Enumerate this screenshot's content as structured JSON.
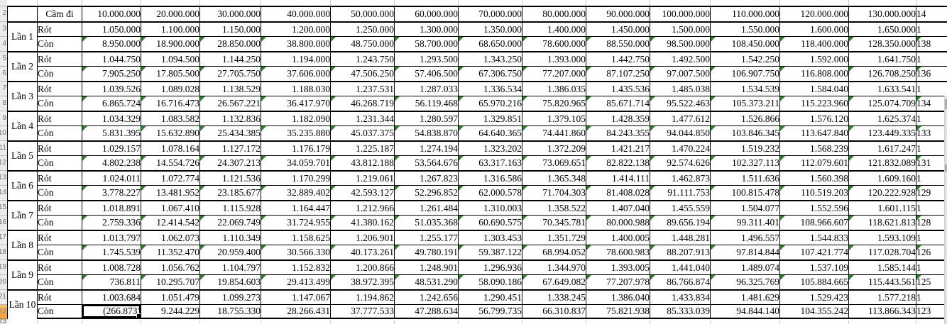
{
  "sheet": {
    "corner": "",
    "header": {
      "label_col": "Cầm đi",
      "amounts": [
        "10.000.000",
        "20.000.000",
        "30.000.000",
        "40.000.000",
        "50.000.000",
        "60.000.000",
        "70.000.000",
        "80.000.000",
        "90.000.000",
        "100.000.000",
        "110.000.000",
        "120.000.000",
        "130.000.000"
      ],
      "amount_cut": "14"
    },
    "sub_labels": {
      "rot": "Rót",
      "con": "Còn"
    },
    "rows": [
      {
        "label": "Lần 1",
        "rot": [
          "1.050.000",
          "1.100.000",
          "1.150.000",
          "1.200.000",
          "1.250.000",
          "1.300.000",
          "1.350.000",
          "1.400.000",
          "1.450.000",
          "1.500.000",
          "1.550.000",
          "1.600.000",
          "1.650.000"
        ],
        "rot_cut": "1",
        "con": [
          "8.950.000",
          "18.900.000",
          "28.850.000",
          "38.800.000",
          "48.750.000",
          "58.700.000",
          "68.650.000",
          "78.600.000",
          "88.550.000",
          "98.500.000",
          "108.450.000",
          "118.400.000",
          "128.350.000"
        ],
        "con_cut": "138"
      },
      {
        "label": "Lần 2",
        "rot": [
          "1.044.750",
          "1.094.500",
          "1.144.250",
          "1.194.000",
          "1.243.750",
          "1.293.500",
          "1.343.250",
          "1.393.000",
          "1.442.750",
          "1.492.500",
          "1.542.250",
          "1.592.000",
          "1.641.750"
        ],
        "rot_cut": "1",
        "con": [
          "7.905.250",
          "17.805.500",
          "27.705.750",
          "37.606.000",
          "47.506.250",
          "57.406.500",
          "67.306.750",
          "77.207.000",
          "87.107.250",
          "97.007.500",
          "106.907.750",
          "116.808.000",
          "126.708.250"
        ],
        "con_cut": "136"
      },
      {
        "label": "Lần 3",
        "rot": [
          "1.039.526",
          "1.089.028",
          "1.138.529",
          "1.188.030",
          "1.237.531",
          "1.287.033",
          "1.336.534",
          "1.386.035",
          "1.435.536",
          "1.485.038",
          "1.534.539",
          "1.584.040",
          "1.633.541"
        ],
        "rot_cut": "1",
        "con": [
          "6.865.724",
          "16.716.473",
          "26.567.221",
          "36.417.970",
          "46.268.719",
          "56.119.468",
          "65.970.216",
          "75.820.965",
          "85.671.714",
          "95.522.463",
          "105.373.211",
          "115.223.960",
          "125.074.709"
        ],
        "con_cut": "134"
      },
      {
        "label": "Lần 4",
        "rot": [
          "1.034.329",
          "1.083.582",
          "1.132.836",
          "1.182.090",
          "1.231.344",
          "1.280.597",
          "1.329.851",
          "1.379.105",
          "1.428.359",
          "1.477.612",
          "1.526.866",
          "1.576.120",
          "1.625.374"
        ],
        "rot_cut": "1",
        "con": [
          "5.831.395",
          "15.632.890",
          "25.434.385",
          "35.235.880",
          "45.037.375",
          "54.838.870",
          "64.640.365",
          "74.441.860",
          "84.243.355",
          "94.044.850",
          "103.846.345",
          "113.647.840",
          "123.449.335"
        ],
        "con_cut": "133"
      },
      {
        "label": "Lần 5",
        "rot": [
          "1.029.157",
          "1.078.164",
          "1.127.172",
          "1.176.179",
          "1.225.187",
          "1.274.194",
          "1.323.202",
          "1.372.209",
          "1.421.217",
          "1.470.224",
          "1.519.232",
          "1.568.239",
          "1.617.247"
        ],
        "rot_cut": "1",
        "con": [
          "4.802.238",
          "14.554.726",
          "24.307.213",
          "34.059.701",
          "43.812.188",
          "53.564.676",
          "63.317.163",
          "73.069.651",
          "82.822.138",
          "92.574.626",
          "102.327.113",
          "112.079.601",
          "121.832.089"
        ],
        "con_cut": "131"
      },
      {
        "label": "Lần 6",
        "rot": [
          "1.024.011",
          "1.072.774",
          "1.121.536",
          "1.170.299",
          "1.219.061",
          "1.267.823",
          "1.316.586",
          "1.365.348",
          "1.414.111",
          "1.462.873",
          "1.511.636",
          "1.560.398",
          "1.609.160"
        ],
        "rot_cut": "1",
        "con": [
          "3.778.227",
          "13.481.952",
          "23.185.677",
          "32.889.402",
          "42.593.127",
          "52.296.852",
          "62.000.578",
          "71.704.303",
          "81.408.028",
          "91.111.753",
          "100.815.478",
          "110.519.203",
          "120.222.928"
        ],
        "con_cut": "129"
      },
      {
        "label": "Lần 7",
        "rot": [
          "1.018.891",
          "1.067.410",
          "1.115.928",
          "1.164.447",
          "1.212.966",
          "1.261.484",
          "1.310.003",
          "1.358.522",
          "1.407.040",
          "1.455.559",
          "1.504.077",
          "1.552.596",
          "1.601.115"
        ],
        "rot_cut": "1",
        "con": [
          "2.759.336",
          "12.414.542",
          "22.069.749",
          "31.724.955",
          "41.380.162",
          "51.035.368",
          "60.690.575",
          "70.345.781",
          "80.000.988",
          "89.656.194",
          "99.311.401",
          "108.966.607",
          "118.621.813"
        ],
        "con_cut": "128"
      },
      {
        "label": "Lần 8",
        "rot": [
          "1.013.797",
          "1.062.073",
          "1.110.349",
          "1.158.625",
          "1.206.901",
          "1.255.177",
          "1.303.453",
          "1.351.729",
          "1.400.005",
          "1.448.281",
          "1.496.557",
          "1.544.833",
          "1.593.109"
        ],
        "rot_cut": "1",
        "con": [
          "1.745.539",
          "11.352.470",
          "20.959.400",
          "30.566.330",
          "40.173.261",
          "49.780.191",
          "59.387.122",
          "68.994.052",
          "78.600.983",
          "88.207.913",
          "97.814.844",
          "107.421.774",
          "117.028.704"
        ],
        "con_cut": "126"
      },
      {
        "label": "Lần 9",
        "rot": [
          "1.008.728",
          "1.056.762",
          "1.104.797",
          "1.152.832",
          "1.200.866",
          "1.248.901",
          "1.296.936",
          "1.344.970",
          "1.393.005",
          "1.441.040",
          "1.489.074",
          "1.537.109",
          "1.585.144"
        ],
        "rot_cut": "1",
        "con": [
          "736.811",
          "10.295.707",
          "19.854.603",
          "29.413.499",
          "38.972.395",
          "48.531.290",
          "58.090.186",
          "67.649.082",
          "77.207.978",
          "86.766.874",
          "96.325.769",
          "105.884.665",
          "115.443.561"
        ],
        "con_cut": "125"
      },
      {
        "label": "Lần 10",
        "rot": [
          "1.003.684",
          "1.051.479",
          "1.099.273",
          "1.147.067",
          "1.194.862",
          "1.242.656",
          "1.290.451",
          "1.338.245",
          "1.386.040",
          "1.433.834",
          "1.481.629",
          "1.529.423",
          "1.577.218"
        ],
        "rot_cut": "1",
        "con": [
          "(266.873)",
          "9.244.229",
          "18.755.330",
          "28.266.431",
          "37.777.533",
          "47.288.634",
          "56.799.735",
          "66.310.837",
          "75.821.938",
          "85.333.039",
          "94.844.140",
          "104.355.242",
          "113.866.343"
        ],
        "con_cut": "123"
      }
    ],
    "selection": {
      "row": "Lần 10",
      "sub": "Còn",
      "column": "10.000.000",
      "value": "(266.873)"
    },
    "colors": {
      "rot_fill": "#F2DCDB",
      "con_fill": "#B8CCE4",
      "cell_border": "#000000",
      "error_triangle": "#2E7D32",
      "active_row_header": "#F9A93C",
      "gridline": "#C8CEDA"
    }
  }
}
